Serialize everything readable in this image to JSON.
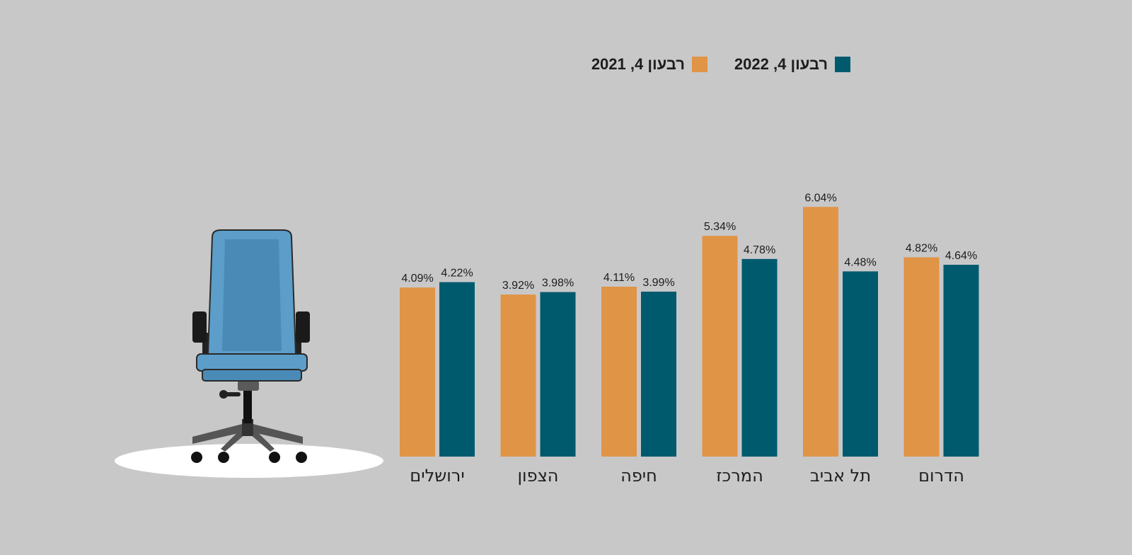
{
  "colors": {
    "background": "#c8c8c9",
    "series_2021": "#e09446",
    "series_2022": "#005a6e",
    "chair_blue": "#5c9ec9",
    "chair_dark": "#222222",
    "floor_spot": "#ffffff"
  },
  "legend": {
    "items": [
      {
        "label": "רבעון 4, 2022",
        "color": "#005a6e"
      },
      {
        "label": "רבעון 4, 2021",
        "color": "#e09446"
      }
    ]
  },
  "illustration": {
    "icon": "office-chair-icon"
  },
  "chart_data": {
    "type": "bar",
    "categories": [
      "ירושלים",
      "הצפון",
      "חיפה",
      "המרכז",
      "תל אביב",
      "הדרום"
    ],
    "series": [
      {
        "name": "רבעון 4, 2021",
        "values": [
          4.09,
          3.92,
          4.11,
          5.34,
          6.04,
          4.82
        ],
        "labels": [
          "4.09%",
          "3.92%",
          "4.11%",
          "5.34%",
          "6.04%",
          "4.82%"
        ]
      },
      {
        "name": "רבעון 4, 2022",
        "values": [
          4.22,
          3.98,
          3.99,
          4.78,
          4.48,
          4.64
        ],
        "labels": [
          "4.22%",
          "3.98%",
          "3.99%",
          "4.78%",
          "4.48%",
          "4.64%"
        ]
      }
    ],
    "ylim": [
      0,
      7.34
    ],
    "grid": false,
    "legend_position": "top"
  }
}
